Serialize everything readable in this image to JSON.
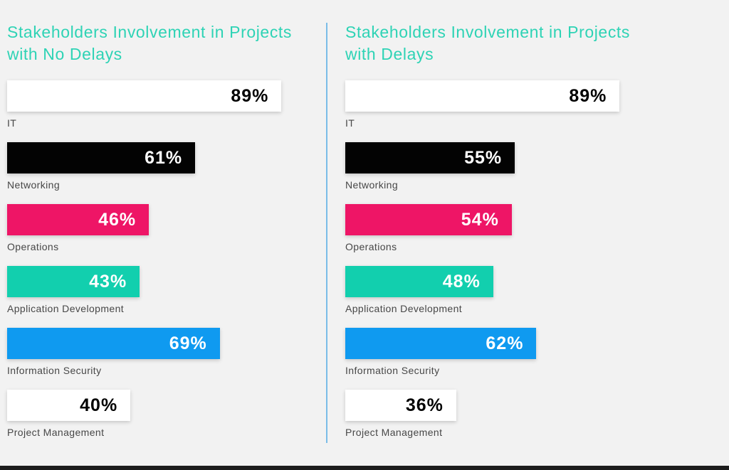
{
  "page": {
    "background_color": "#f2f2f2",
    "divider_color": "#7abde8",
    "footer_bar_color": "#1d1d1d",
    "title_color": "#2ed3b5",
    "label_color": "#474747"
  },
  "chart_data": [
    {
      "type": "bar",
      "orientation": "horizontal",
      "title": "Stakeholders Involvement in Projects with No Delays",
      "categories": [
        "IT",
        "Networking",
        "Operations",
        "Application Development",
        "Information Security",
        "Project Management"
      ],
      "values": [
        89,
        61,
        46,
        43,
        69,
        40
      ],
      "value_labels": [
        "89%",
        "61%",
        "46%",
        "43%",
        "69%",
        "40%"
      ],
      "bar_colors": [
        "#ffffff",
        "#030303",
        "#ee1566",
        "#12cfae",
        "#0f9af0",
        "#ffffff"
      ],
      "text_colors": [
        "#000000",
        "#ffffff",
        "#ffffff",
        "#ffffff",
        "#ffffff",
        "#000000"
      ],
      "xlim": [
        0,
        100
      ],
      "grid": false,
      "legend": false
    },
    {
      "type": "bar",
      "orientation": "horizontal",
      "title": "Stakeholders Involvement in Projects with Delays",
      "categories": [
        "IT",
        "Networking",
        "Operations",
        "Application Development",
        "Information Security",
        "Project Management"
      ],
      "values": [
        89,
        55,
        54,
        48,
        62,
        36
      ],
      "value_labels": [
        "89%",
        "55%",
        "54%",
        "48%",
        "62%",
        "36%"
      ],
      "bar_colors": [
        "#ffffff",
        "#030303",
        "#ee1566",
        "#12cfae",
        "#0f9af0",
        "#ffffff"
      ],
      "text_colors": [
        "#000000",
        "#ffffff",
        "#ffffff",
        "#ffffff",
        "#ffffff",
        "#000000"
      ],
      "xlim": [
        0,
        100
      ],
      "grid": false,
      "legend": false
    }
  ]
}
